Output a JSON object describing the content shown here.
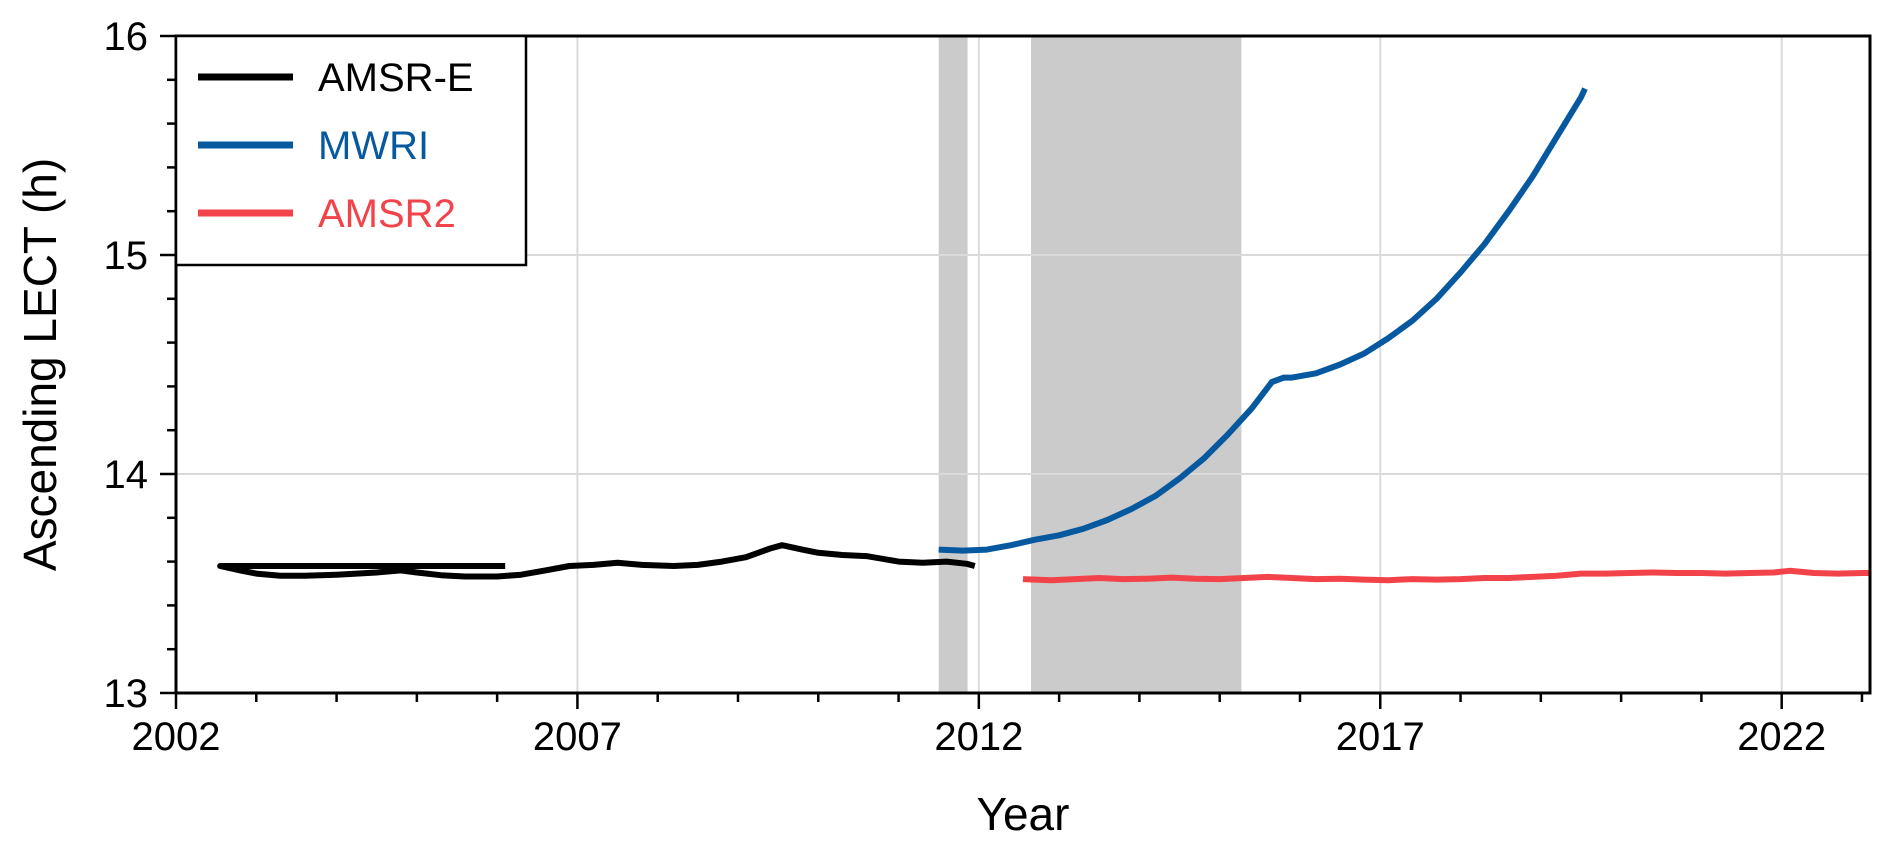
{
  "chart_data": {
    "type": "line",
    "xlabel": "Year",
    "ylabel": "Ascending LECT (h)",
    "xlim": [
      2002,
      2023.1
    ],
    "ylim": [
      13,
      16
    ],
    "xticks": [
      2002,
      2007,
      2012,
      2017,
      2022
    ],
    "yticks": [
      13,
      14,
      15,
      16
    ],
    "x_minor_step": 1,
    "y_minor_step": 0.2,
    "grid": true,
    "legend_position": "top-left",
    "shaded_periods": [
      [
        2011.5,
        2011.86
      ],
      [
        2012.65,
        2015.27
      ]
    ],
    "series": [
      {
        "name": "AMSR-E",
        "color": "#000000",
        "points": [
          [
            2006.1,
            13.58
          ],
          [
            2002.55,
            13.58
          ],
          [
            2002.8,
            13.56
          ],
          [
            2003.0,
            13.545
          ],
          [
            2003.3,
            13.535
          ],
          [
            2003.6,
            13.535
          ],
          [
            2004.0,
            13.54
          ],
          [
            2004.5,
            13.55
          ],
          [
            2004.8,
            13.56
          ],
          [
            2005.0,
            13.55
          ],
          [
            2005.3,
            13.538
          ],
          [
            2005.6,
            13.532
          ],
          [
            2006.0,
            13.532
          ],
          [
            2006.3,
            13.54
          ],
          [
            2006.6,
            13.56
          ],
          [
            2006.9,
            13.58
          ],
          [
            2007.2,
            13.585
          ],
          [
            2007.5,
            13.595
          ],
          [
            2007.8,
            13.585
          ],
          [
            2008.2,
            13.58
          ],
          [
            2008.5,
            13.585
          ],
          [
            2008.8,
            13.6
          ],
          [
            2009.1,
            13.62
          ],
          [
            2009.4,
            13.66
          ],
          [
            2009.55,
            13.675
          ],
          [
            2009.8,
            13.655
          ],
          [
            2010.0,
            13.64
          ],
          [
            2010.3,
            13.63
          ],
          [
            2010.6,
            13.625
          ],
          [
            2011.0,
            13.6
          ],
          [
            2011.3,
            13.595
          ],
          [
            2011.6,
            13.6
          ],
          [
            2011.85,
            13.59
          ],
          [
            2011.95,
            13.58
          ]
        ]
      },
      {
        "name": "MWRI",
        "color": "#07599f",
        "points": [
          [
            2011.5,
            13.655
          ],
          [
            2011.8,
            13.65
          ],
          [
            2012.1,
            13.655
          ],
          [
            2012.4,
            13.675
          ],
          [
            2012.7,
            13.7
          ],
          [
            2013.0,
            13.72
          ],
          [
            2013.3,
            13.75
          ],
          [
            2013.6,
            13.79
          ],
          [
            2013.9,
            13.84
          ],
          [
            2014.2,
            13.9
          ],
          [
            2014.5,
            13.98
          ],
          [
            2014.8,
            14.07
          ],
          [
            2015.1,
            14.18
          ],
          [
            2015.4,
            14.3
          ],
          [
            2015.65,
            14.42
          ],
          [
            2015.8,
            14.44
          ],
          [
            2015.9,
            14.44
          ],
          [
            2016.2,
            14.46
          ],
          [
            2016.5,
            14.5
          ],
          [
            2016.8,
            14.55
          ],
          [
            2017.1,
            14.62
          ],
          [
            2017.4,
            14.7
          ],
          [
            2017.7,
            14.8
          ],
          [
            2018.0,
            14.92
          ],
          [
            2018.3,
            15.05
          ],
          [
            2018.6,
            15.2
          ],
          [
            2018.9,
            15.36
          ],
          [
            2019.2,
            15.54
          ],
          [
            2019.5,
            15.72
          ],
          [
            2019.55,
            15.76
          ]
        ]
      },
      {
        "name": "AMSR2",
        "color": "#f2434a",
        "points": [
          [
            2012.55,
            13.52
          ],
          [
            2012.9,
            13.515
          ],
          [
            2013.2,
            13.52
          ],
          [
            2013.5,
            13.525
          ],
          [
            2013.8,
            13.52
          ],
          [
            2014.1,
            13.522
          ],
          [
            2014.4,
            13.527
          ],
          [
            2014.7,
            13.522
          ],
          [
            2015.0,
            13.52
          ],
          [
            2015.3,
            13.525
          ],
          [
            2015.6,
            13.53
          ],
          [
            2015.9,
            13.525
          ],
          [
            2016.2,
            13.52
          ],
          [
            2016.5,
            13.522
          ],
          [
            2016.8,
            13.518
          ],
          [
            2017.1,
            13.515
          ],
          [
            2017.4,
            13.52
          ],
          [
            2017.7,
            13.518
          ],
          [
            2018.0,
            13.52
          ],
          [
            2018.3,
            13.525
          ],
          [
            2018.6,
            13.525
          ],
          [
            2018.9,
            13.53
          ],
          [
            2019.2,
            13.535
          ],
          [
            2019.5,
            13.545
          ],
          [
            2019.8,
            13.545
          ],
          [
            2020.1,
            13.548
          ],
          [
            2020.4,
            13.55
          ],
          [
            2020.7,
            13.548
          ],
          [
            2021.0,
            13.548
          ],
          [
            2021.3,
            13.545
          ],
          [
            2021.6,
            13.548
          ],
          [
            2021.9,
            13.55
          ],
          [
            2022.1,
            13.558
          ],
          [
            2022.4,
            13.548
          ],
          [
            2022.7,
            13.545
          ],
          [
            2023.0,
            13.548
          ],
          [
            2023.1,
            13.548
          ]
        ]
      }
    ]
  }
}
